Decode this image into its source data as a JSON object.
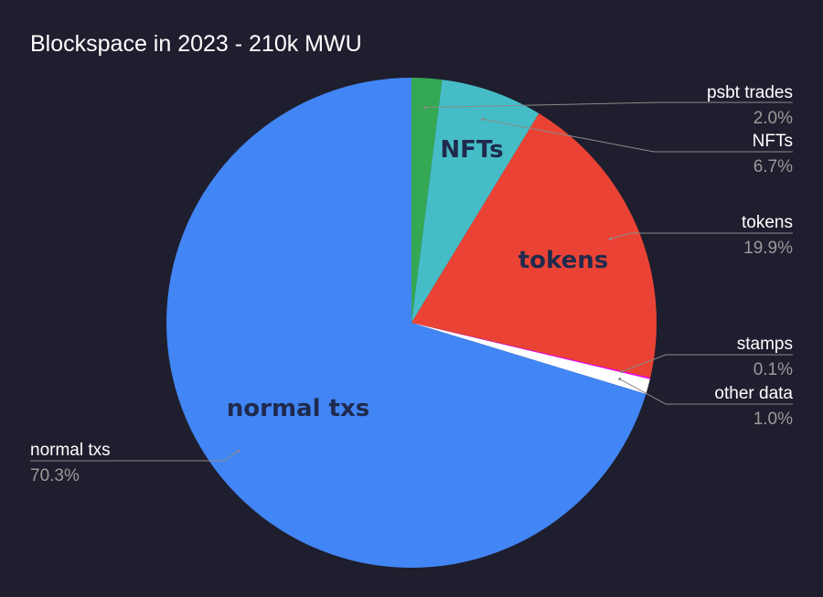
{
  "chart_data": {
    "type": "pie",
    "title": "Blockspace in 2023 - 210k MWU",
    "slices": [
      {
        "label": "psbt trades",
        "value": 2.0,
        "display": "2.0%",
        "color": "#34a853",
        "inside_label": ""
      },
      {
        "label": "NFTs",
        "value": 6.7,
        "display": "6.7%",
        "color": "#46bdc6",
        "inside_label": "NFTs"
      },
      {
        "label": "tokens",
        "value": 19.9,
        "display": "19.9%",
        "color": "#ea4335",
        "inside_label": "tokens"
      },
      {
        "label": "stamps",
        "value": 0.1,
        "display": "0.1%",
        "color": "#ff00ff",
        "inside_label": ""
      },
      {
        "label": "other data",
        "value": 1.0,
        "display": "1.0%",
        "color": "#ffffff",
        "inside_label": ""
      },
      {
        "label": "normal txs",
        "value": 70.3,
        "display": "70.3%",
        "color": "#4285f4",
        "inside_label": "normal txs"
      }
    ],
    "start_angle": "top (12 o'clock)",
    "direction": "clockwise",
    "legend": "callout labels with leader lines"
  }
}
